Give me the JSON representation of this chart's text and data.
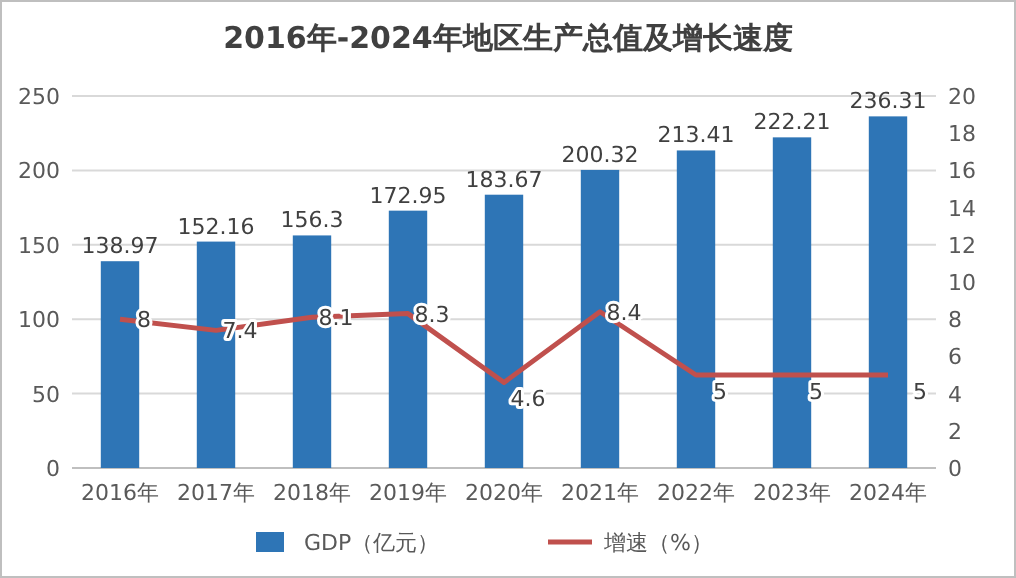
{
  "chart_data": {
    "type": "bar",
    "title": "2016年-2024年地区生产总值及增长速度",
    "categories": [
      "2016年",
      "2017年",
      "2018年",
      "2019年",
      "2020年",
      "2021年",
      "2022年",
      "2023年",
      "2024年"
    ],
    "series": [
      {
        "name": "GDP（亿元）",
        "color": "#2e75b6",
        "values": [
          138.97,
          152.16,
          156.3,
          172.95,
          183.67,
          200.32,
          213.41,
          222.21,
          236.31
        ]
      },
      {
        "name": "增速（%）",
        "type": "line",
        "axis": "y2",
        "color": "#c0504d",
        "values": [
          8,
          7.4,
          8.1,
          8.3,
          4.6,
          8.4,
          5,
          5,
          5
        ]
      }
    ],
    "ylim": [
      0,
      250
    ],
    "yticks": [
      0,
      50,
      100,
      150,
      200,
      250
    ],
    "y2lim": [
      0,
      20
    ],
    "y2ticks": [
      0,
      2,
      4,
      6,
      8,
      10,
      12,
      14,
      16,
      18,
      20
    ],
    "grid": "y",
    "legend": "bottom",
    "data_labels": true
  }
}
